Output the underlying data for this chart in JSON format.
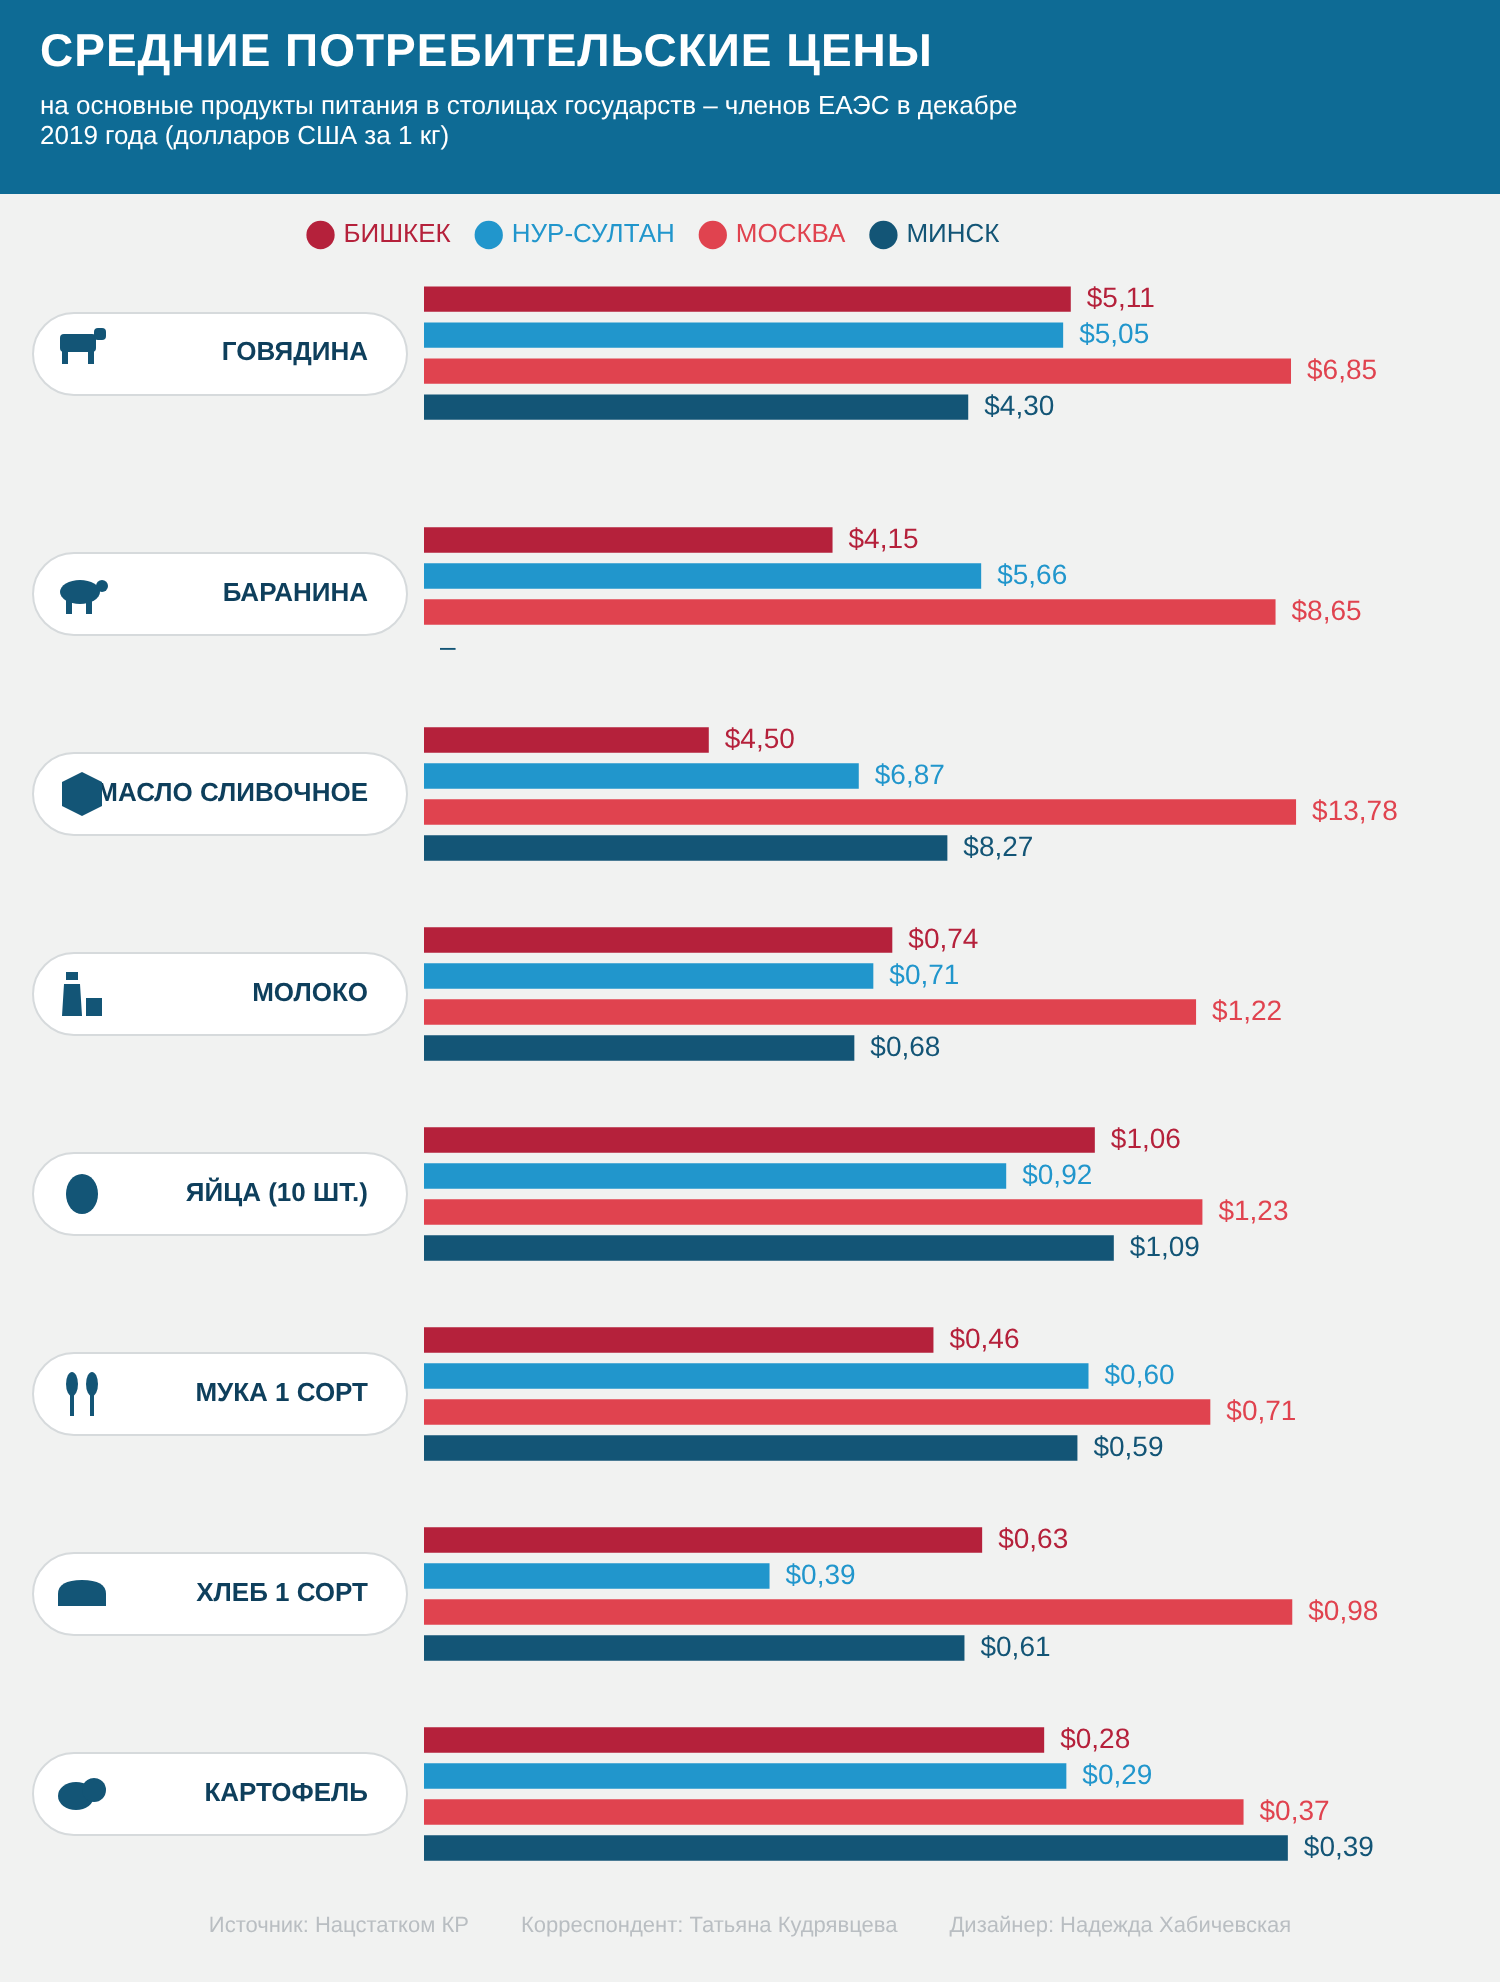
{
  "chart_data": [
    {
      "type": "bar",
      "orientation": "horizontal",
      "title": "СРЕДНИЕ ПОТРЕБИТЕЛЬСКИЕ ЦЕНЫ",
      "subtitle": "на основные продукты питания в столицах государств – членов ЕАЭС в декабре 2019 года (долларов США за 1 кг)",
      "legend": "top",
      "tick_labels": "y",
      "categories": [
        "ГОВЯДИНА"
      ],
      "series": [
        {
          "name": "БИШКЕК",
          "color": "#b5213b",
          "values": [
            5.11
          ],
          "value_labels": [
            "$5,11"
          ]
        },
        {
          "name": "НУР-СУЛТАН",
          "color": "#2196cc",
          "values": [
            5.05
          ],
          "value_labels": [
            "$5,05"
          ]
        },
        {
          "name": "МОСКВА",
          "color": "#e0434f",
          "values": [
            6.85
          ],
          "value_labels": [
            "$6,85"
          ]
        },
        {
          "name": "МИНСК",
          "color": "#135576",
          "values": [
            4.3
          ],
          "value_labels": [
            "$4,30"
          ]
        }
      ]
    },
    {
      "type": "bar",
      "orientation": "horizontal",
      "tick_labels": "y",
      "categories": [
        "БАРАНИНА"
      ],
      "series": [
        {
          "color": "#b5213b",
          "values": [
            4.15
          ],
          "value_labels": [
            "$4,15"
          ]
        },
        {
          "color": "#2196cc",
          "values": [
            5.66
          ],
          "value_labels": [
            "$5,66"
          ]
        },
        {
          "color": "#e0434f",
          "values": [
            8.65
          ],
          "value_labels": [
            "$8,65"
          ]
        },
        {
          "color": "#135576",
          "values": [
            null
          ],
          "value_labels": [
            "–"
          ]
        }
      ]
    },
    {
      "type": "bar",
      "orientation": "horizontal",
      "tick_labels": "y",
      "categories": [
        "МАСЛО СЛИВОЧНОЕ"
      ],
      "series": [
        {
          "color": "#b5213b",
          "values": [
            4.5
          ],
          "value_labels": [
            "$4,50"
          ]
        },
        {
          "color": "#2196cc",
          "values": [
            6.87
          ],
          "value_labels": [
            "$6,87"
          ]
        },
        {
          "color": "#e0434f",
          "values": [
            13.78
          ],
          "value_labels": [
            "$13,78"
          ]
        },
        {
          "color": "#135576",
          "values": [
            8.27
          ],
          "value_labels": [
            "$8,27"
          ]
        }
      ]
    },
    {
      "type": "bar",
      "orientation": "horizontal",
      "tick_labels": "y",
      "categories": [
        "МОЛОКО"
      ],
      "series": [
        {
          "color": "#b5213b",
          "values": [
            0.74
          ],
          "value_labels": [
            "$0,74"
          ]
        },
        {
          "color": "#2196cc",
          "values": [
            0.71
          ],
          "value_labels": [
            "$0,71"
          ]
        },
        {
          "color": "#e0434f",
          "values": [
            1.22
          ],
          "value_labels": [
            "$1,22"
          ]
        },
        {
          "color": "#135576",
          "values": [
            0.68
          ],
          "value_labels": [
            "$0,68"
          ]
        }
      ]
    },
    {
      "type": "bar",
      "orientation": "horizontal",
      "tick_labels": "y",
      "categories": [
        "ЯЙЦА (10 ШТ.)"
      ],
      "series": [
        {
          "color": "#b5213b",
          "values": [
            1.06
          ],
          "value_labels": [
            "$1,06"
          ]
        },
        {
          "color": "#2196cc",
          "values": [
            0.92
          ],
          "value_labels": [
            "$0,92"
          ]
        },
        {
          "color": "#e0434f",
          "values": [
            1.23
          ],
          "value_labels": [
            "$1,23"
          ]
        },
        {
          "color": "#135576",
          "values": [
            1.09
          ],
          "value_labels": [
            "$1,09"
          ]
        }
      ]
    },
    {
      "type": "bar",
      "orientation": "horizontal",
      "tick_labels": "y",
      "categories": [
        "МУКА 1 СОРТ"
      ],
      "series": [
        {
          "color": "#b5213b",
          "values": [
            0.46
          ],
          "value_labels": [
            "$0,46"
          ]
        },
        {
          "color": "#2196cc",
          "values": [
            0.6
          ],
          "value_labels": [
            "$0,60"
          ]
        },
        {
          "color": "#e0434f",
          "values": [
            0.71
          ],
          "value_labels": [
            "$0,71"
          ]
        },
        {
          "color": "#135576",
          "values": [
            0.59
          ],
          "value_labels": [
            "$0,59"
          ]
        }
      ]
    },
    {
      "type": "bar",
      "orientation": "horizontal",
      "tick_labels": "y",
      "categories": [
        "ХЛЕБ 1 СОРТ"
      ],
      "series": [
        {
          "color": "#b5213b",
          "values": [
            0.63
          ],
          "value_labels": [
            "$0,63"
          ]
        },
        {
          "color": "#2196cc",
          "values": [
            0.39
          ],
          "value_labels": [
            "$0,39"
          ]
        },
        {
          "color": "#e0434f",
          "values": [
            0.98
          ],
          "value_labels": [
            "$0,98"
          ]
        },
        {
          "color": "#135576",
          "values": [
            0.61
          ],
          "value_labels": [
            "$0,61"
          ]
        }
      ]
    },
    {
      "type": "bar",
      "orientation": "horizontal",
      "tick_labels": "y",
      "categories": [
        "КАРТОФЕЛЬ"
      ],
      "annotations": [
        "Источник: Нацстатком КР",
        "Корреспондент: Татьяна Кудрявцева",
        "Дизайнер: Надежда Хабичевская"
      ],
      "series": [
        {
          "color": "#b5213b",
          "values": [
            0.28
          ],
          "value_labels": [
            "$0,28"
          ]
        },
        {
          "color": "#2196cc",
          "values": [
            0.29
          ],
          "value_labels": [
            "$0,29"
          ]
        },
        {
          "color": "#e0434f",
          "values": [
            0.37
          ],
          "value_labels": [
            "$0,37"
          ]
        },
        {
          "color": "#135576",
          "values": [
            0.39
          ],
          "value_labels": [
            "$0,39"
          ]
        }
      ]
    }
  ]
}
